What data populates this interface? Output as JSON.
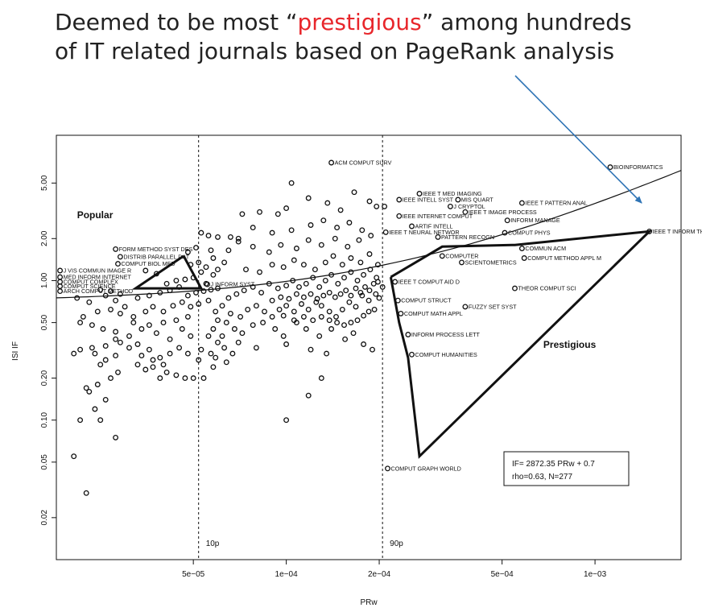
{
  "headline": {
    "line1_pre": "Deemed to be most “",
    "line1_highlight": "prestigious",
    "line1_post": "” among hundreds",
    "line2": "of IT related journals based on PageRank analysis"
  },
  "colors": {
    "highlight": "#e8262b",
    "arrow": "#2f74b5",
    "ink": "#111111"
  },
  "chart_data": {
    "type": "scatter",
    "xlabel": "PRw",
    "ylabel": "ISI IF",
    "x_scale": "log",
    "y_scale": "log",
    "xlim": [
      1.8e-05,
      0.0019
    ],
    "ylim": [
      0.01,
      11
    ],
    "x_ticks": [
      {
        "v": 5e-05,
        "label": "5e−05"
      },
      {
        "v": 0.0001,
        "label": "1e−04"
      },
      {
        "v": 0.0002,
        "label": "2e−04"
      },
      {
        "v": 0.0005,
        "label": "5e−04"
      },
      {
        "v": 0.001,
        "label": "1e−03"
      }
    ],
    "y_ticks": [
      {
        "v": 0.02,
        "label": "0.02"
      },
      {
        "v": 0.05,
        "label": "0.05"
      },
      {
        "v": 0.1,
        "label": "0.10"
      },
      {
        "v": 0.2,
        "label": "0.20"
      },
      {
        "v": 0.5,
        "label": "0.50"
      },
      {
        "v": 1,
        "label": "1.00"
      },
      {
        "v": 2,
        "label": "2.00"
      },
      {
        "v": 5,
        "label": "5.00"
      }
    ],
    "percentile_lines": [
      {
        "x": 5.2e-05,
        "label": "10p"
      },
      {
        "x": 0.000205,
        "label": "90p"
      }
    ],
    "regions": [
      {
        "name": "Popular",
        "x": 2.1e-05,
        "y": 2.8
      },
      {
        "name": "Prestigious",
        "x": 0.00068,
        "y": 0.33
      }
    ],
    "fit": {
      "text1": "IF= 2872.35 PRw + 0.7",
      "text2": "rho=0.63, N=277",
      "slope": 2872.35,
      "intercept": 0.7
    },
    "popular_hull": [
      [
        4.65e-05,
        1.5
      ],
      [
        5.3e-05,
        0.88
      ],
      [
        3.25e-05,
        0.88
      ]
    ],
    "prestigious_hull": [
      [
        0.000218,
        1.06
      ],
      [
        0.00032,
        1.75
      ],
      [
        0.00055,
        1.8
      ],
      [
        0.0015,
        2.25
      ],
      [
        0.00027,
        0.055
      ],
      [
        0.000248,
        0.28
      ],
      [
        0.000232,
        0.5
      ],
      [
        0.000218,
        1.06
      ]
    ],
    "labeled_points": [
      {
        "name": "ACM COMPUT SURV",
        "x": 0.00014,
        "y": 7.0
      },
      {
        "name": "BIOINFORMATICS",
        "x": 0.00112,
        "y": 6.5
      },
      {
        "name": "IEEE T INFORM THEORY",
        "x": 0.0015,
        "y": 2.25
      },
      {
        "name": "IEEE T MED IMAGING",
        "x": 0.00027,
        "y": 4.2
      },
      {
        "name": "IEEE INTELL SYST",
        "x": 0.000232,
        "y": 3.8
      },
      {
        "name": "MIS QUART",
        "x": 0.00036,
        "y": 3.8
      },
      {
        "name": "IEEE T PATTERN ANAL",
        "x": 0.00058,
        "y": 3.6
      },
      {
        "name": "J CRYPTOL",
        "x": 0.00034,
        "y": 3.4
      },
      {
        "name": "IEEE T IMAGE PROCESS",
        "x": 0.00038,
        "y": 3.1
      },
      {
        "name": "IEEE INTERNET COMPUT",
        "x": 0.000232,
        "y": 2.9
      },
      {
        "name": "INFORM MANAGE",
        "x": 0.00052,
        "y": 2.7
      },
      {
        "name": "ARTIF INTELL",
        "x": 0.000255,
        "y": 2.45
      },
      {
        "name": "IEEE T NEURAL NETWOR",
        "x": 0.00021,
        "y": 2.22
      },
      {
        "name": "COMPUT PHYS",
        "x": 0.00051,
        "y": 2.2
      },
      {
        "name": "PATTERN RECOGN",
        "x": 0.00031,
        "y": 2.05
      },
      {
        "name": "COMMUN ACM",
        "x": 0.00058,
        "y": 1.7
      },
      {
        "name": "COMPUTER",
        "x": 0.00032,
        "y": 1.5
      },
      {
        "name": "COMPUT METHOD APPL M",
        "x": 0.00059,
        "y": 1.45
      },
      {
        "name": "SCIENTOMETRICS",
        "x": 0.00037,
        "y": 1.35
      },
      {
        "name": "IEEE T COMPUT AID D",
        "x": 0.000225,
        "y": 0.98
      },
      {
        "name": "THEOR COMPUT SCI",
        "x": 0.00055,
        "y": 0.88
      },
      {
        "name": "COMPUT STRUCT",
        "x": 0.00023,
        "y": 0.72
      },
      {
        "name": "FUZZY SET SYST",
        "x": 0.00038,
        "y": 0.65
      },
      {
        "name": "COMPUT MATH APPL",
        "x": 0.000235,
        "y": 0.58
      },
      {
        "name": "INFORM PROCESS LETT",
        "x": 0.000248,
        "y": 0.41
      },
      {
        "name": "COMPUT HUMANITIES",
        "x": 0.000255,
        "y": 0.295
      },
      {
        "name": "COMPUT GRAPH WORLD",
        "x": 0.000213,
        "y": 0.045
      },
      {
        "name": "FORM METHOD SYST DES",
        "x": 2.8e-05,
        "y": 1.68
      },
      {
        "name": "DISTRIB PARALLEL DAT",
        "x": 2.9e-05,
        "y": 1.48
      },
      {
        "name": "COMPUT BIOL MED",
        "x": 2.85e-05,
        "y": 1.32
      },
      {
        "name": "J VIS COMMUN IMAGE R",
        "x": 1.85e-05,
        "y": 1.18
      },
      {
        "name": "MED INFORM INTERNET",
        "x": 1.85e-05,
        "y": 1.06
      },
      {
        "name": "COMPUT COMPLEX",
        "x": 1.85e-05,
        "y": 0.98
      },
      {
        "name": "COMPUT SCIENCE",
        "x": 1.85e-05,
        "y": 0.91
      },
      {
        "name": "ARCH COMPUT METHOD",
        "x": 1.85e-05,
        "y": 0.84
      },
      {
        "name": "J INFORM SYST",
        "x": 5.55e-05,
        "y": 0.94
      }
    ],
    "points": [
      [
        2.25e-05,
        0.03
      ],
      [
        2.05e-05,
        0.055
      ],
      [
        2.15e-05,
        0.1
      ],
      [
        2.5e-05,
        0.1
      ],
      [
        2.8e-05,
        0.075
      ],
      [
        2.4e-05,
        0.12
      ],
      [
        2.3e-05,
        0.16
      ],
      [
        2.25e-05,
        0.17
      ],
      [
        2.6e-05,
        0.14
      ],
      [
        2.45e-05,
        0.18
      ],
      [
        2.7e-05,
        0.2
      ],
      [
        2.85e-05,
        0.22
      ],
      [
        2.5e-05,
        0.25
      ],
      [
        2.4e-05,
        0.3
      ],
      [
        2.05e-05,
        0.3
      ],
      [
        2.15e-05,
        0.32
      ],
      [
        2.35e-05,
        0.33
      ],
      [
        2.6e-05,
        0.34
      ],
      [
        2.9e-05,
        0.36
      ],
      [
        3.1e-05,
        0.33
      ],
      [
        3.3e-05,
        0.25
      ],
      [
        3.5e-05,
        0.23
      ],
      [
        3.7e-05,
        0.24
      ],
      [
        3.9e-05,
        0.2
      ],
      [
        4.1e-05,
        0.22
      ],
      [
        4.4e-05,
        0.21
      ],
      [
        4.7e-05,
        0.2
      ],
      [
        5e-05,
        0.2
      ],
      [
        5.4e-05,
        0.2
      ],
      [
        5.8e-05,
        0.24
      ],
      [
        6.4e-05,
        0.26
      ],
      [
        5.7e-05,
        0.3
      ],
      [
        5.3e-05,
        0.32
      ],
      [
        4.9e-05,
        0.4
      ],
      [
        4.6e-05,
        0.45
      ],
      [
        4.2e-05,
        0.38
      ],
      [
        3.8e-05,
        0.42
      ],
      [
        3.4e-05,
        0.45
      ],
      [
        3.1e-05,
        0.4
      ],
      [
        2.8e-05,
        0.43
      ],
      [
        2.55e-05,
        0.45
      ],
      [
        2.35e-05,
        0.48
      ],
      [
        2.15e-05,
        0.5
      ],
      [
        2.2e-05,
        0.55
      ],
      [
        2.45e-05,
        0.6
      ],
      [
        2.7e-05,
        0.62
      ],
      [
        2.9e-05,
        0.58
      ],
      [
        3.2e-05,
        0.55
      ],
      [
        3.5e-05,
        0.6
      ],
      [
        3.7e-05,
        0.65
      ],
      [
        4e-05,
        0.6
      ],
      [
        4.3e-05,
        0.66
      ],
      [
        4.6e-05,
        0.7
      ],
      [
        4.9e-05,
        0.65
      ],
      [
        5.2e-05,
        0.68
      ],
      [
        5.6e-05,
        0.72
      ],
      [
        5.9e-05,
        0.6
      ],
      [
        6.2e-05,
        0.66
      ],
      [
        6.6e-05,
        0.58
      ],
      [
        7.1e-05,
        0.55
      ],
      [
        7.5e-05,
        0.62
      ],
      [
        8e-05,
        0.66
      ],
      [
        8.5e-05,
        0.6
      ],
      [
        9e-05,
        0.55
      ],
      [
        9.5e-05,
        0.62
      ],
      [
        0.0001,
        0.66
      ],
      [
        0.000106,
        0.6
      ],
      [
        0.000112,
        0.68
      ],
      [
        0.000118,
        0.62
      ],
      [
        0.000125,
        0.7
      ],
      [
        0.00013,
        0.66
      ],
      [
        0.000138,
        0.6
      ],
      [
        0.000145,
        0.55
      ],
      [
        0.000152,
        0.62
      ],
      [
        0.00016,
        0.7
      ],
      [
        0.000168,
        0.65
      ],
      [
        0.000176,
        0.78
      ],
      [
        0.000185,
        0.72
      ],
      [
        0.000195,
        0.8
      ],
      [
        0.000205,
        0.9
      ],
      [
        6.8e-05,
        0.45
      ],
      [
        7.2e-05,
        0.42
      ],
      [
        7.8e-05,
        0.48
      ],
      [
        8.4e-05,
        0.5
      ],
      [
        9.2e-05,
        0.45
      ],
      [
        9.8e-05,
        0.4
      ],
      [
        0.000108,
        0.5
      ],
      [
        0.000116,
        0.45
      ],
      [
        0.000128,
        0.4
      ],
      [
        0.00014,
        0.45
      ],
      [
        0.000155,
        0.38
      ],
      [
        0.000165,
        0.42
      ],
      [
        0.000178,
        0.35
      ],
      [
        0.00019,
        0.32
      ],
      [
        0.000135,
        0.3
      ],
      [
        0.00012,
        0.32
      ],
      [
        0.0001,
        0.35
      ],
      [
        8e-05,
        0.33
      ],
      [
        7e-05,
        0.36
      ],
      [
        6.2e-05,
        0.4
      ],
      [
        6.5e-05,
        0.75
      ],
      [
        6.9e-05,
        0.8
      ],
      [
        7.3e-05,
        0.85
      ],
      [
        7.8e-05,
        0.9
      ],
      [
        8.3e-05,
        0.82
      ],
      [
        8.8e-05,
        0.95
      ],
      [
        9.4e-05,
        0.88
      ],
      [
        0.0001,
        0.92
      ],
      [
        0.000105,
        1.0
      ],
      [
        0.00011,
        0.9
      ],
      [
        0.000116,
        0.95
      ],
      [
        0.000122,
        1.05
      ],
      [
        0.000128,
        0.9
      ],
      [
        0.000134,
        1.0
      ],
      [
        0.00014,
        1.1
      ],
      [
        0.000147,
        0.95
      ],
      [
        0.000154,
        1.05
      ],
      [
        0.000162,
        1.15
      ],
      [
        0.00017,
        1.0
      ],
      [
        0.000178,
        1.1
      ],
      [
        0.000187,
        1.2
      ],
      [
        0.000196,
        1.05
      ],
      [
        7.4e-05,
        1.2
      ],
      [
        8.2e-05,
        1.15
      ],
      [
        9e-05,
        1.3
      ],
      [
        9.8e-05,
        1.25
      ],
      [
        0.000106,
        1.4
      ],
      [
        0.000114,
        1.3
      ],
      [
        0.000124,
        1.2
      ],
      [
        0.000134,
        1.35
      ],
      [
        0.000142,
        1.5
      ],
      [
        0.000152,
        1.3
      ],
      [
        0.000162,
        1.45
      ],
      [
        0.000174,
        1.35
      ],
      [
        0.000186,
        1.55
      ],
      [
        0.000198,
        1.3
      ],
      [
        6.5e-05,
        1.65
      ],
      [
        7e-05,
        1.9
      ],
      [
        7.8e-05,
        1.75
      ],
      [
        8.8e-05,
        1.6
      ],
      [
        9.6e-05,
        1.8
      ],
      [
        0.000108,
        1.7
      ],
      [
        0.000118,
        1.95
      ],
      [
        0.00013,
        1.8
      ],
      [
        0.000144,
        2.0
      ],
      [
        0.000158,
        1.75
      ],
      [
        0.000172,
        1.95
      ],
      [
        0.000188,
        2.1
      ],
      [
        0.000176,
        2.3
      ],
      [
        0.00016,
        2.6
      ],
      [
        0.000146,
        2.4
      ],
      [
        0.000132,
        2.7
      ],
      [
        0.00012,
        2.5
      ],
      [
        0.000104,
        2.3
      ],
      [
        9e-05,
        2.2
      ],
      [
        7.8e-05,
        2.4
      ],
      [
        7e-05,
        2.0
      ],
      [
        6.6e-05,
        2.05
      ],
      [
        0.00015,
        3.2
      ],
      [
        0.000136,
        3.6
      ],
      [
        0.000118,
        3.9
      ],
      [
        0.0001,
        3.3
      ],
      [
        9.4e-05,
        3.0
      ],
      [
        8.2e-05,
        3.1
      ],
      [
        7.2e-05,
        3.0
      ],
      [
        0.000104,
        5.0
      ],
      [
        0.000166,
        4.3
      ],
      [
        0.000186,
        3.7
      ],
      [
        0.000196,
        3.4
      ],
      [
        0.000208,
        3.4
      ],
      [
        0.00013,
        0.2
      ],
      [
        0.000118,
        0.15
      ],
      [
        0.0001,
        0.1
      ],
      [
        4.4e-05,
        0.52
      ],
      [
        4.8e-05,
        0.55
      ],
      [
        4e-05,
        0.5
      ],
      [
        3.6e-05,
        0.48
      ],
      [
        3.2e-05,
        0.5
      ],
      [
        3e-05,
        0.65
      ],
      [
        2.8e-05,
        0.72
      ],
      [
        3.3e-05,
        0.75
      ],
      [
        3.6e-05,
        0.78
      ],
      [
        3.9e-05,
        0.82
      ],
      [
        4.2e-05,
        0.85
      ],
      [
        4.5e-05,
        0.9
      ],
      [
        4.8e-05,
        0.78
      ],
      [
        5.1e-05,
        0.82
      ],
      [
        5.4e-05,
        0.84
      ],
      [
        5.7e-05,
        0.86
      ],
      [
        6e-05,
        0.88
      ],
      [
        5.5e-05,
        0.95
      ],
      [
        5.8e-05,
        1.1
      ],
      [
        5.3e-05,
        1.15
      ],
      [
        5e-05,
        1.05
      ],
      [
        4.7e-05,
        1.02
      ],
      [
        4.4e-05,
        1.0
      ],
      [
        4.1e-05,
        0.95
      ],
      [
        3.8e-05,
        1.12
      ],
      [
        3.5e-05,
        1.18
      ],
      [
        6e-05,
        1.2
      ],
      [
        6.3e-05,
        1.35
      ],
      [
        5.8e-05,
        1.45
      ],
      [
        5.5e-05,
        1.25
      ],
      [
        5.2e-05,
        1.35
      ],
      [
        4.9e-05,
        1.3
      ],
      [
        5.7e-05,
        1.65
      ],
      [
        5.1e-05,
        1.72
      ],
      [
        4.8e-05,
        1.6
      ],
      [
        5.6e-05,
        2.1
      ],
      [
        5.3e-05,
        2.2
      ],
      [
        6e-05,
        2.05
      ],
      [
        2.9e-05,
        0.8
      ],
      [
        2.7e-05,
        0.84
      ],
      [
        2.5e-05,
        0.86
      ],
      [
        2.6e-05,
        0.78
      ],
      [
        2.3e-05,
        0.7
      ],
      [
        2.1e-05,
        0.75
      ],
      [
        6e-05,
        0.52
      ],
      [
        6.4e-05,
        0.5
      ],
      [
        5.8e-05,
        0.45
      ],
      [
        5.6e-05,
        0.4
      ],
      [
        6e-05,
        0.36
      ],
      [
        6.3e-05,
        0.33
      ],
      [
        6.7e-05,
        0.3
      ],
      [
        5.9e-05,
        0.28
      ],
      [
        5.2e-05,
        0.27
      ],
      [
        4.8e-05,
        0.3
      ],
      [
        4.5e-05,
        0.33
      ],
      [
        4.2e-05,
        0.3
      ],
      [
        3.9e-05,
        0.28
      ],
      [
        3.6e-05,
        0.32
      ],
      [
        3.3e-05,
        0.35
      ],
      [
        2.8e-05,
        0.38
      ],
      [
        2.6e-05,
        0.27
      ],
      [
        2.8e-05,
        0.29
      ],
      [
        3.4e-05,
        0.29
      ],
      [
        3.7e-05,
        0.27
      ],
      [
        4e-05,
        0.25
      ],
      [
        9e-05,
        0.72
      ],
      [
        9.6e-05,
        0.76
      ],
      [
        0.000102,
        0.74
      ],
      [
        0.000108,
        0.8
      ],
      [
        0.000114,
        0.76
      ],
      [
        0.00012,
        0.8
      ],
      [
        0.000126,
        0.74
      ],
      [
        0.000132,
        0.78
      ],
      [
        0.000138,
        0.82
      ],
      [
        0.000144,
        0.76
      ],
      [
        0.00015,
        0.8
      ],
      [
        0.000156,
        0.85
      ],
      [
        0.000162,
        0.78
      ],
      [
        0.000168,
        0.88
      ],
      [
        0.000174,
        0.82
      ],
      [
        0.00018,
        0.9
      ],
      [
        0.000186,
        0.85
      ],
      [
        0.000192,
        0.95
      ],
      [
        0.000198,
        0.98
      ],
      [
        0.0002,
        0.75
      ],
      [
        0.000193,
        0.62
      ],
      [
        0.000185,
        0.6
      ],
      [
        0.000178,
        0.56
      ],
      [
        0.00017,
        0.52
      ],
      [
        0.000162,
        0.5
      ],
      [
        0.000154,
        0.48
      ],
      [
        0.000146,
        0.5
      ],
      [
        0.000138,
        0.52
      ],
      [
        0.00013,
        0.55
      ],
      [
        0.000122,
        0.52
      ],
      [
        0.000114,
        0.55
      ],
      [
        0.000106,
        0.52
      ],
      [
        9.8e-05,
        0.56
      ]
    ]
  }
}
